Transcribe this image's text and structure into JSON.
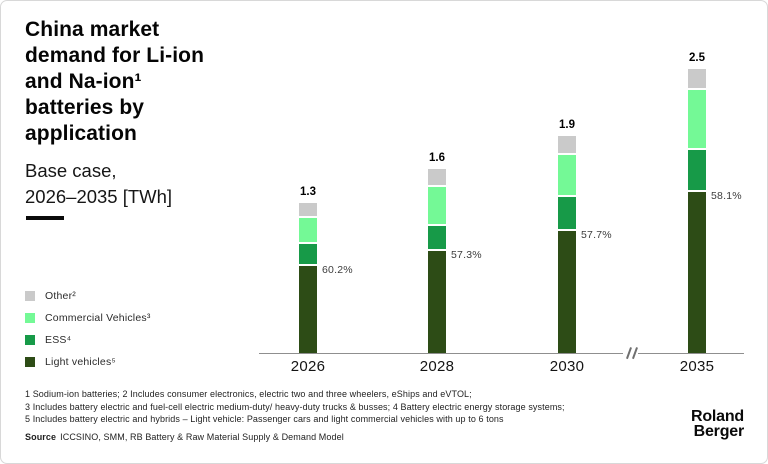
{
  "header": {
    "title": "China market demand for Li-ion and Na-ion¹ batteries by application",
    "subtitle_line1": "Base case,",
    "subtitle_line2": "2026–2035 [TWh]"
  },
  "legend": {
    "items": [
      {
        "label": "Other²",
        "color": "#cacaca"
      },
      {
        "label": "Commercial Vehicles³",
        "color": "#74f996"
      },
      {
        "label": "ESS⁴",
        "color": "#179a48"
      },
      {
        "label": "Light vehicles⁵",
        "color": "#2d4c16"
      }
    ]
  },
  "chart_data": {
    "type": "bar",
    "stacked": true,
    "title": "China market demand for Li-ion and Na-ion batteries by application",
    "subtitle": "Base case, 2026–2035 [TWh]",
    "unit": "TWh",
    "categories": [
      "2026",
      "2028",
      "2030",
      "2035"
    ],
    "series": [
      {
        "name": "Light vehicles⁵",
        "color": "#2d4c16",
        "values": [
          0.78,
          0.92,
          1.1,
          1.45
        ]
      },
      {
        "name": "ESS⁴",
        "color": "#179a48",
        "values": [
          0.18,
          0.21,
          0.29,
          0.36
        ]
      },
      {
        "name": "Commercial Vehicles³",
        "color": "#74f996",
        "values": [
          0.22,
          0.33,
          0.36,
          0.52
        ]
      },
      {
        "name": "Other²",
        "color": "#cacaca",
        "values": [
          0.12,
          0.14,
          0.15,
          0.17
        ]
      }
    ],
    "totals": [
      "1.3",
      "1.6",
      "1.9",
      "2.5"
    ],
    "light_vehicle_share_labels": [
      "60.2%",
      "57.3%",
      "57.7%",
      "58.1%"
    ],
    "xlabel": "",
    "ylabel": "",
    "grid": false,
    "legend_position": "left",
    "axis_break_between": [
      "2030",
      "2035"
    ]
  },
  "footnotes": [
    "1 Sodium-ion batteries;  2  Includes consumer electronics, electric two and three wheelers, eShips and eVTOL;",
    "3  Includes battery electric and fuel-cell electric medium-duty/ heavy-duty trucks & busses;  4  Battery electric energy storage systems;",
    "5  Includes battery electric and hybrids – Light vehicle: Passenger cars and light commercial vehicles with up to 6 tons"
  ],
  "source": {
    "prefix": "Source",
    "text": "ICCSINO, SMM, RB Battery & Raw Material Supply & Demand Model"
  },
  "logo": {
    "line1": "Roland",
    "line2": "Berger"
  }
}
